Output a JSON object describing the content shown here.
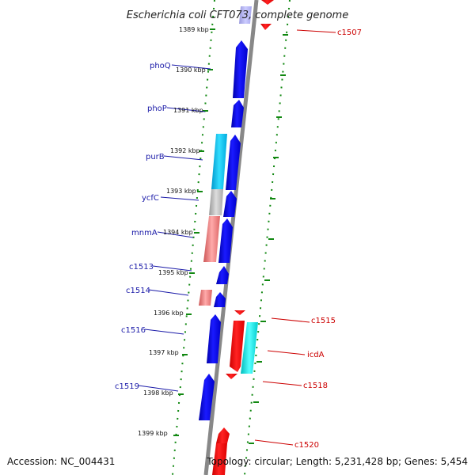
{
  "header": {
    "title": "Escherichia coli CFT073, complete genome"
  },
  "footer": {
    "accession": "Accession: NC_004431",
    "topology": "Topology: circular; Length: 5,231,428 bp; Genes: 5,454"
  },
  "ticks": [
    "1389 kbp",
    "1390 kbp",
    "1391 kbp",
    "1392 kbp",
    "1393 kbp",
    "1394 kbp",
    "1395 kbp",
    "1396 kbp",
    "1397 kbp",
    "1398 kbp",
    "1399 kbp"
  ],
  "left_genes": [
    "phoQ",
    "phoP",
    "purB",
    "ycfC",
    "mnmA",
    "c1513",
    "c1514",
    "c1516",
    "c1519"
  ],
  "right_genes": [
    "c1507",
    "c1515",
    "icdA",
    "c1518",
    "c1520"
  ],
  "colors": {
    "backbone": "#888888",
    "forward_gene": "#0000ee",
    "reverse_gene": "#ff0000",
    "cyan_gene": "#00ccee",
    "gray_gene": "#bbbbbb",
    "pink_gene": "#ee7777",
    "dotted_track": "#118811",
    "left_label": "#1a1aa8",
    "right_label": "#cc0000"
  }
}
